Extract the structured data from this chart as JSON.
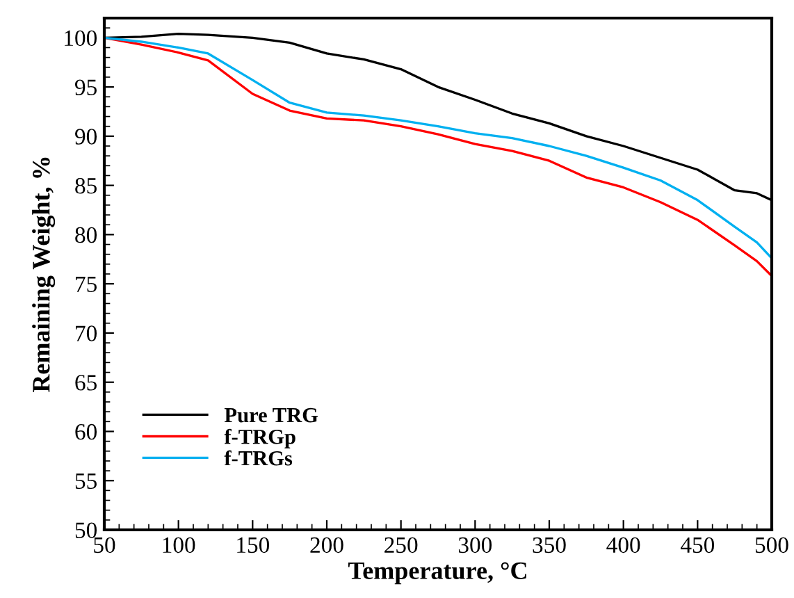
{
  "chart_data": {
    "type": "line",
    "xlabel": "Temperature, °C",
    "ylabel": "Remaining Weight, %",
    "x": [
      50,
      75,
      100,
      120,
      150,
      175,
      200,
      225,
      250,
      275,
      300,
      325,
      350,
      375,
      400,
      425,
      450,
      475,
      490,
      500
    ],
    "series": [
      {
        "name": "Pure TRG",
        "color": "#000000",
        "values": [
          100,
          100.1,
          100.4,
          100.3,
          100,
          99.5,
          98.4,
          97.8,
          96.8,
          95,
          93.7,
          92.3,
          91.3,
          90,
          89,
          87.8,
          86.6,
          84.5,
          84.2,
          83.5
        ]
      },
      {
        "name": "f-TRGp",
        "color": "#ff0000",
        "values": [
          100,
          99.3,
          98.5,
          97.7,
          94.3,
          92.6,
          91.8,
          91.6,
          91,
          90.2,
          89.2,
          88.5,
          87.5,
          85.8,
          84.8,
          83.3,
          81.5,
          78.9,
          77.3,
          75.8
        ]
      },
      {
        "name": "f-TRGs",
        "color": "#00b0f0",
        "values": [
          100,
          99.6,
          99,
          98.4,
          95.7,
          93.4,
          92.4,
          92.1,
          91.6,
          91,
          90.3,
          89.8,
          89,
          88,
          86.8,
          85.5,
          83.5,
          80.8,
          79.2,
          77.6
        ]
      }
    ],
    "xlim": [
      50,
      500
    ],
    "ylim": [
      50,
      102
    ],
    "xticks": [
      50,
      100,
      150,
      200,
      250,
      300,
      350,
      400,
      450,
      500
    ],
    "yticks": [
      50,
      55,
      60,
      65,
      70,
      75,
      80,
      85,
      90,
      95,
      100
    ],
    "grid": false,
    "legend": "bottom left",
    "marker": "none",
    "line_style": "solid"
  }
}
